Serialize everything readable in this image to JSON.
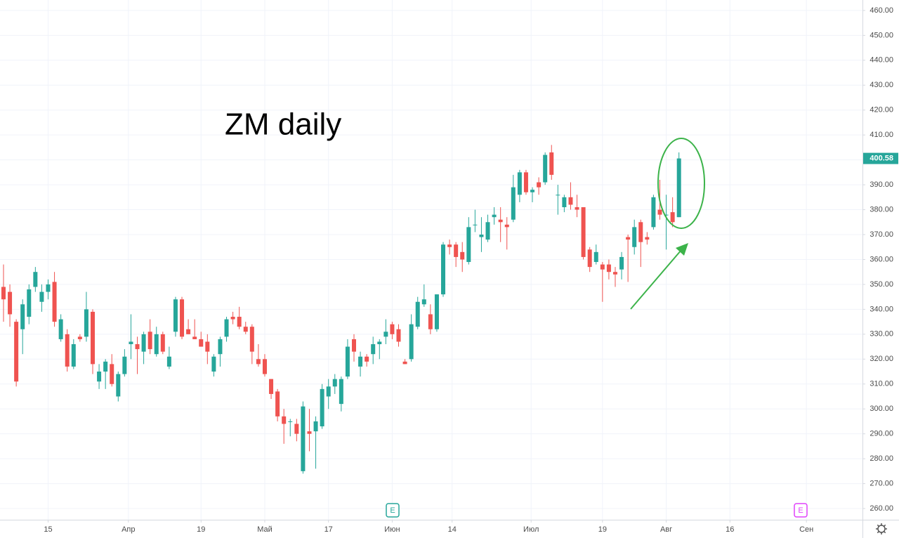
{
  "chart_data": {
    "type": "candlestick",
    "title": "ZM daily",
    "series": [
      {
        "open": [
          349,
          347,
          335,
          332,
          337,
          349,
          343,
          347,
          351,
          328,
          330,
          317,
          329,
          329,
          339,
          311,
          315,
          318,
          305,
          314,
          326,
          326,
          323,
          331,
          322,
          330,
          317,
          331,
          344,
          332,
          329,
          328,
          327,
          315,
          322,
          329,
          337,
          337,
          333,
          333,
          320,
          320,
          312,
          307,
          297,
          295,
          294,
          275,
          291,
          291,
          293,
          305,
          309,
          302,
          313,
          328,
          317,
          321,
          322,
          326,
          329,
          334,
          332,
          319,
          320,
          333,
          342,
          338,
          332,
          346,
          366,
          366,
          363,
          359,
          374,
          369,
          368,
          377,
          376,
          374,
          376,
          386,
          395,
          387,
          391,
          391,
          403,
          386,
          381,
          385,
          381,
          381,
          364,
          359,
          358,
          358,
          355,
          356,
          369,
          365,
          375,
          369,
          373,
          380,
          378,
          379,
          377
        ],
        "high": [
          358,
          350,
          336,
          344,
          350,
          357,
          350,
          352,
          355,
          338,
          332,
          328,
          330,
          347,
          340,
          318,
          320,
          322,
          315,
          324,
          338,
          329,
          331,
          336,
          333,
          331,
          325,
          345,
          345,
          336,
          336,
          331,
          330,
          322,
          329,
          337,
          339,
          341,
          335,
          334,
          326,
          322,
          312,
          308,
          300,
          296,
          296,
          303,
          300,
          297,
          310,
          312,
          314,
          313,
          328,
          330,
          323,
          322,
          329,
          328,
          336,
          335,
          334,
          320,
          338,
          345,
          350,
          342,
          346,
          367,
          368,
          367,
          367,
          377,
          380,
          377,
          378,
          381,
          381,
          377,
          394,
          396,
          396,
          389,
          393,
          403,
          406,
          390,
          386,
          391,
          386,
          381,
          365,
          366,
          359,
          360,
          357,
          363,
          370,
          376,
          376,
          371,
          386,
          392,
          386,
          385,
          403
        ],
        "low": [
          335,
          333,
          309,
          322,
          334,
          347,
          339,
          344,
          333,
          327,
          315,
          316,
          327,
          327,
          314,
          308,
          308,
          309,
          303,
          313,
          320,
          314,
          318,
          322,
          321,
          322,
          316,
          329,
          328,
          330,
          328,
          325,
          318,
          313,
          317,
          327,
          334,
          332,
          330,
          318,
          317,
          313,
          304,
          295,
          286,
          289,
          287,
          274,
          283,
          276,
          292,
          300,
          306,
          299,
          312,
          319,
          313,
          317,
          318,
          320,
          326,
          328,
          325,
          318,
          319,
          332,
          341,
          330,
          331,
          345,
          362,
          357,
          355,
          358,
          371,
          363,
          367,
          374,
          367,
          364,
          375,
          383,
          386,
          383,
          386,
          390,
          392,
          378,
          379,
          380,
          377,
          360,
          355,
          358,
          343,
          352,
          349,
          352,
          351,
          362,
          357,
          366,
          372,
          376,
          364,
          373,
          377
        ],
        "close": [
          344,
          338,
          311,
          342,
          348,
          355,
          347,
          350,
          335,
          336,
          317,
          326,
          328,
          340,
          318,
          315,
          319,
          310,
          314,
          321,
          327,
          324,
          330,
          324,
          330,
          323,
          321,
          344,
          329,
          330,
          328,
          325,
          323,
          321,
          328,
          336,
          336,
          333,
          331,
          323,
          318,
          314,
          306,
          297,
          294,
          295,
          290,
          301,
          290,
          295,
          308,
          309,
          312,
          312,
          325,
          323,
          321,
          319,
          326,
          327,
          331,
          330,
          327,
          318,
          334,
          343,
          344,
          332,
          346,
          366,
          365,
          361,
          360,
          373,
          374,
          370,
          375,
          378,
          375,
          373,
          389,
          395,
          387,
          388,
          389,
          402,
          394,
          386,
          385,
          382,
          380,
          361,
          357,
          363,
          356,
          355,
          354,
          361,
          368,
          373,
          367,
          368,
          385,
          378,
          378,
          375,
          400.58
        ],
        "up_color": "#26a69a",
        "down_color": "#ef5350"
      }
    ],
    "ylim": [
      255.5,
      464.2
    ],
    "yticks": [
      {
        "value": 260,
        "label": "260.00"
      },
      {
        "value": 270,
        "label": "270.00"
      },
      {
        "value": 280,
        "label": "280.00"
      },
      {
        "value": 290,
        "label": "290.00"
      },
      {
        "value": 300,
        "label": "300.00"
      },
      {
        "value": 310,
        "label": "310.00"
      },
      {
        "value": 320,
        "label": "320.00"
      },
      {
        "value": 330,
        "label": "330.00"
      },
      {
        "value": 340,
        "label": "340.00"
      },
      {
        "value": 350,
        "label": "350.00"
      },
      {
        "value": 360,
        "label": "360.00"
      },
      {
        "value": 370,
        "label": "370.00"
      },
      {
        "value": 380,
        "label": "380.00"
      },
      {
        "value": 390,
        "label": "390.00"
      },
      {
        "value": 400,
        "label": "400.00"
      },
      {
        "value": 410,
        "label": "410.00"
      },
      {
        "value": 420,
        "label": "420.00"
      },
      {
        "value": 430,
        "label": "430.00"
      },
      {
        "value": 440,
        "label": "440.00"
      },
      {
        "value": 450,
        "label": "450.00"
      },
      {
        "value": 460,
        "label": "460.00"
      }
    ],
    "xlim": [
      -0.55,
      134.8
    ],
    "xticks": [
      {
        "value": 7,
        "label": "15"
      },
      {
        "value": 19.6,
        "label": "Апр"
      },
      {
        "value": 31,
        "label": "19"
      },
      {
        "value": 41,
        "label": "Май"
      },
      {
        "value": 51,
        "label": "17"
      },
      {
        "value": 61,
        "label": "Июн"
      },
      {
        "value": 70.4,
        "label": "14"
      },
      {
        "value": 82.8,
        "label": "Июл"
      },
      {
        "value": 94,
        "label": "19"
      },
      {
        "value": 104,
        "label": "Авг"
      },
      {
        "value": 114,
        "label": "16"
      },
      {
        "value": 126,
        "label": "Сен"
      }
    ],
    "grid": true,
    "events": [
      "E",
      "E"
    ]
  }
}
